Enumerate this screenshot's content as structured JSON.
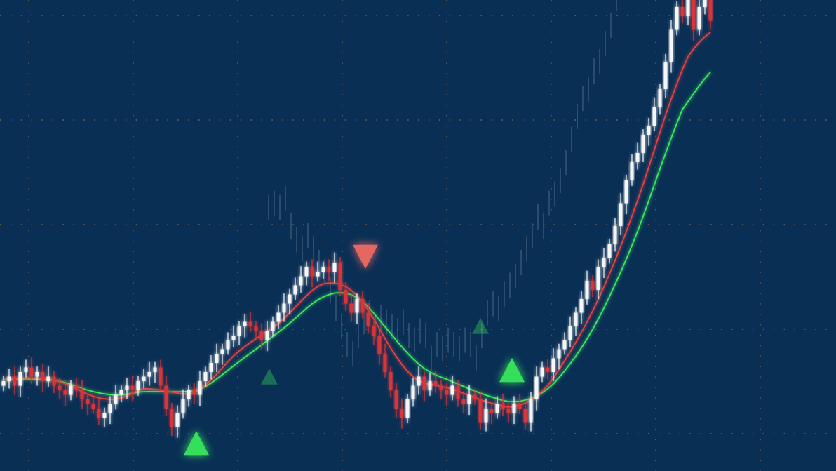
{
  "chart_data": {
    "type": "candlestick",
    "title": "",
    "xlabel": "",
    "ylabel": "",
    "grid": true,
    "colors": {
      "background": "#0a2f55",
      "grid": "#c98a4a",
      "up_candle": "#f4f6f8",
      "down_candle": "#d8363a",
      "fast_ma": "#e8423f",
      "slow_ma": "#3ee85a",
      "buy_signal": "#39e85c",
      "sell_signal": "#f06a64"
    },
    "closes": [
      18,
      19,
      17,
      20,
      21,
      19,
      20,
      18,
      19,
      17,
      16,
      15,
      17,
      16,
      14,
      13,
      12,
      10,
      11,
      13,
      15,
      16,
      17,
      16,
      18,
      19,
      20,
      21,
      17,
      12,
      8,
      11,
      14,
      16,
      15,
      18,
      20,
      22,
      24,
      25,
      27,
      28,
      30,
      31,
      30,
      29,
      27,
      29,
      31,
      33,
      35,
      37,
      39,
      41,
      43,
      41,
      42,
      43,
      42,
      44,
      38,
      35,
      33,
      36,
      33,
      30,
      28,
      24,
      20,
      16,
      12,
      10,
      14,
      17,
      19,
      16,
      18,
      17,
      16,
      15,
      17,
      14,
      13,
      15,
      14,
      9,
      12,
      11,
      13,
      12,
      11,
      13,
      12,
      9,
      14,
      19,
      21,
      20,
      23,
      25,
      27,
      30,
      33,
      36,
      40,
      38,
      43,
      45,
      48,
      52,
      57,
      62,
      66,
      68,
      72,
      74,
      78,
      82,
      88,
      95,
      100,
      98,
      102,
      95,
      100,
      103,
      97
    ],
    "moving_averages": [
      {
        "color_key": "fast_ma"
      },
      {
        "color_key": "slow_ma"
      }
    ],
    "signals": [
      {
        "type": "buy",
        "index": 34,
        "strength": "strong"
      },
      {
        "type": "buy",
        "index": 47,
        "strength": "faint"
      },
      {
        "type": "sell",
        "index": 65,
        "strength": "strong"
      },
      {
        "type": "buy",
        "index": 85,
        "strength": "faint"
      },
      {
        "type": "buy",
        "index": 91,
        "strength": "strong"
      }
    ]
  }
}
